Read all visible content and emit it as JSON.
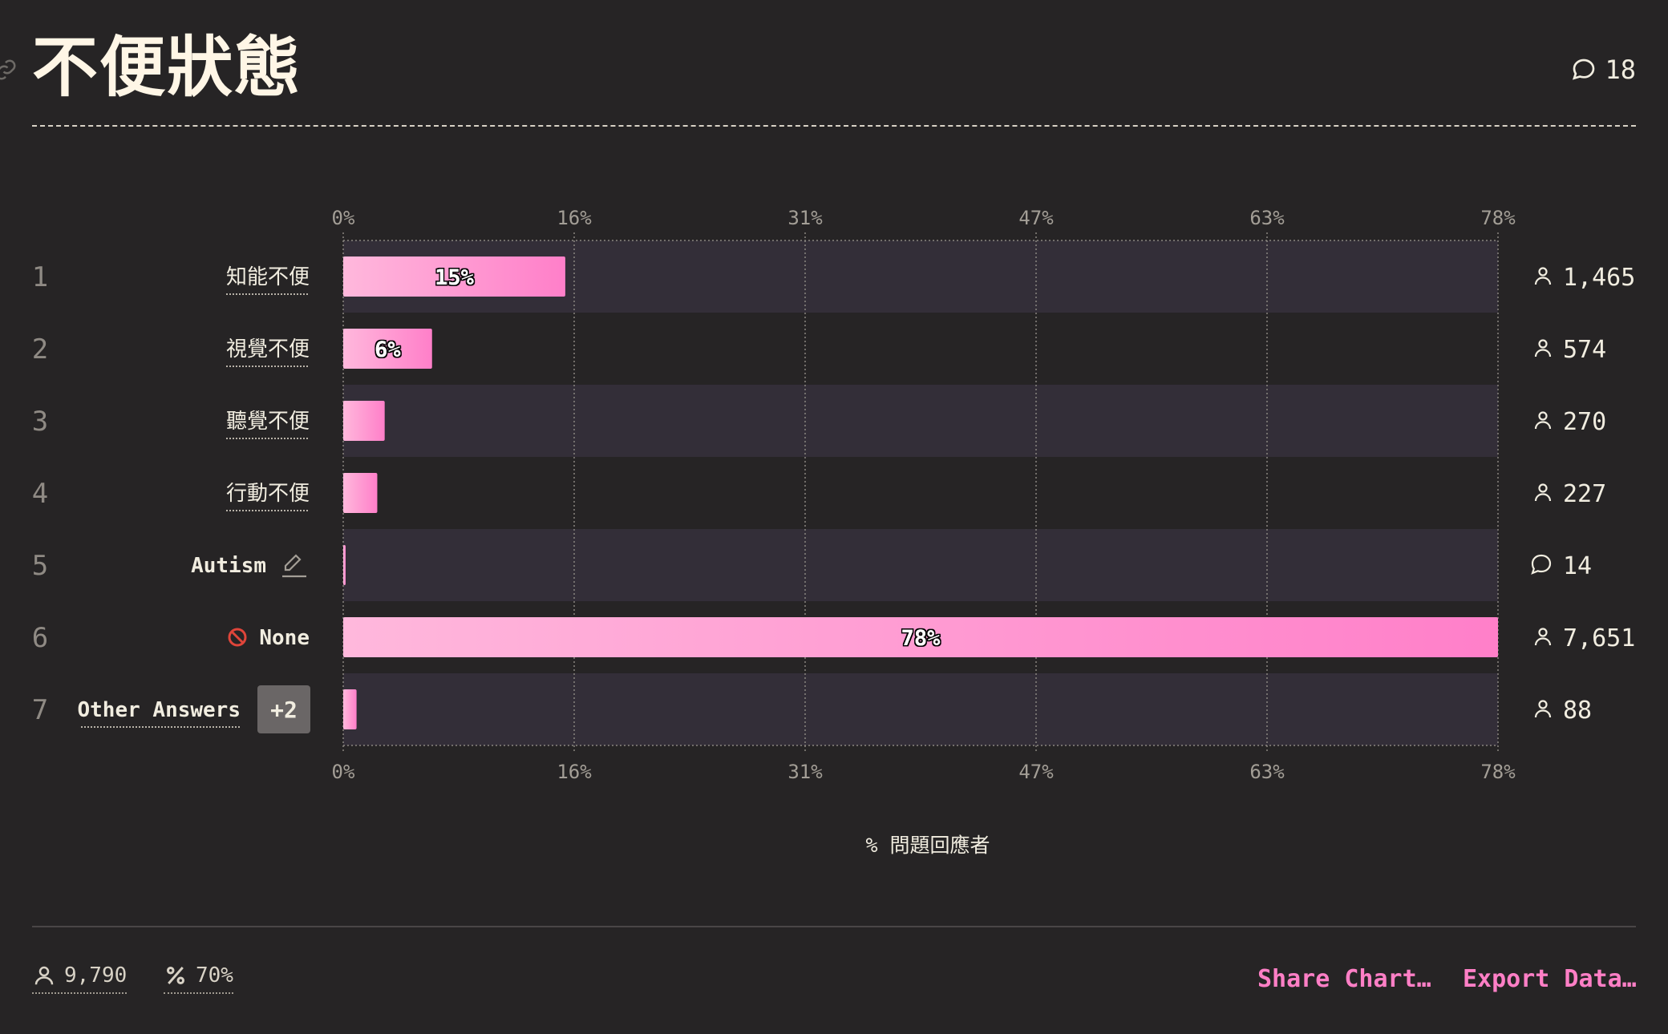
{
  "header": {
    "title": "不便狀態",
    "comment_count": "18"
  },
  "chart_data": {
    "type": "bar",
    "orientation": "horizontal",
    "title": "不便狀態",
    "xlabel": "% 問題回應者",
    "xlim": [
      0,
      78
    ],
    "x_ticks": [
      "0%",
      "16%",
      "31%",
      "47%",
      "63%",
      "78%"
    ],
    "x_tick_values": [
      0,
      15.6,
      31.2,
      46.8,
      62.4,
      78
    ],
    "grid": true,
    "rows": [
      {
        "rank": "1",
        "label": "知能不便",
        "value": 15,
        "value_label": "15%",
        "count": "1,465",
        "count_icon": "person-icon",
        "label_style": "underlined"
      },
      {
        "rank": "2",
        "label": "視覺不便",
        "value": 6,
        "value_label": "6%",
        "count": "574",
        "count_icon": "person-icon",
        "label_style": "underlined"
      },
      {
        "rank": "3",
        "label": "聽覺不便",
        "value": 2.8,
        "value_label": "",
        "count": "270",
        "count_icon": "person-icon",
        "label_style": "underlined"
      },
      {
        "rank": "4",
        "label": "行動不便",
        "value": 2.3,
        "value_label": "",
        "count": "227",
        "count_icon": "person-icon",
        "label_style": "underlined"
      },
      {
        "rank": "5",
        "label": "Autism",
        "value": 0.1,
        "value_label": "",
        "count": "14",
        "count_icon": "comment-icon",
        "label_style": "edit"
      },
      {
        "rank": "6",
        "label": "None",
        "value": 78,
        "value_label": "78%",
        "count": "7,651",
        "count_icon": "person-icon",
        "label_style": "none"
      },
      {
        "rank": "7",
        "label": "Other Answers",
        "value": 0.9,
        "value_label": "",
        "count": "88",
        "count_icon": "person-icon",
        "label_style": "other",
        "badge": "+2"
      }
    ],
    "colors": {
      "bar_start": "#ffb8dc",
      "bar_end": "#ff7fc9",
      "band": "#332e38"
    }
  },
  "footer": {
    "respondents": "9,790",
    "percent": "70%",
    "share_label": "Share Chart…",
    "export_label": "Export Data…"
  }
}
